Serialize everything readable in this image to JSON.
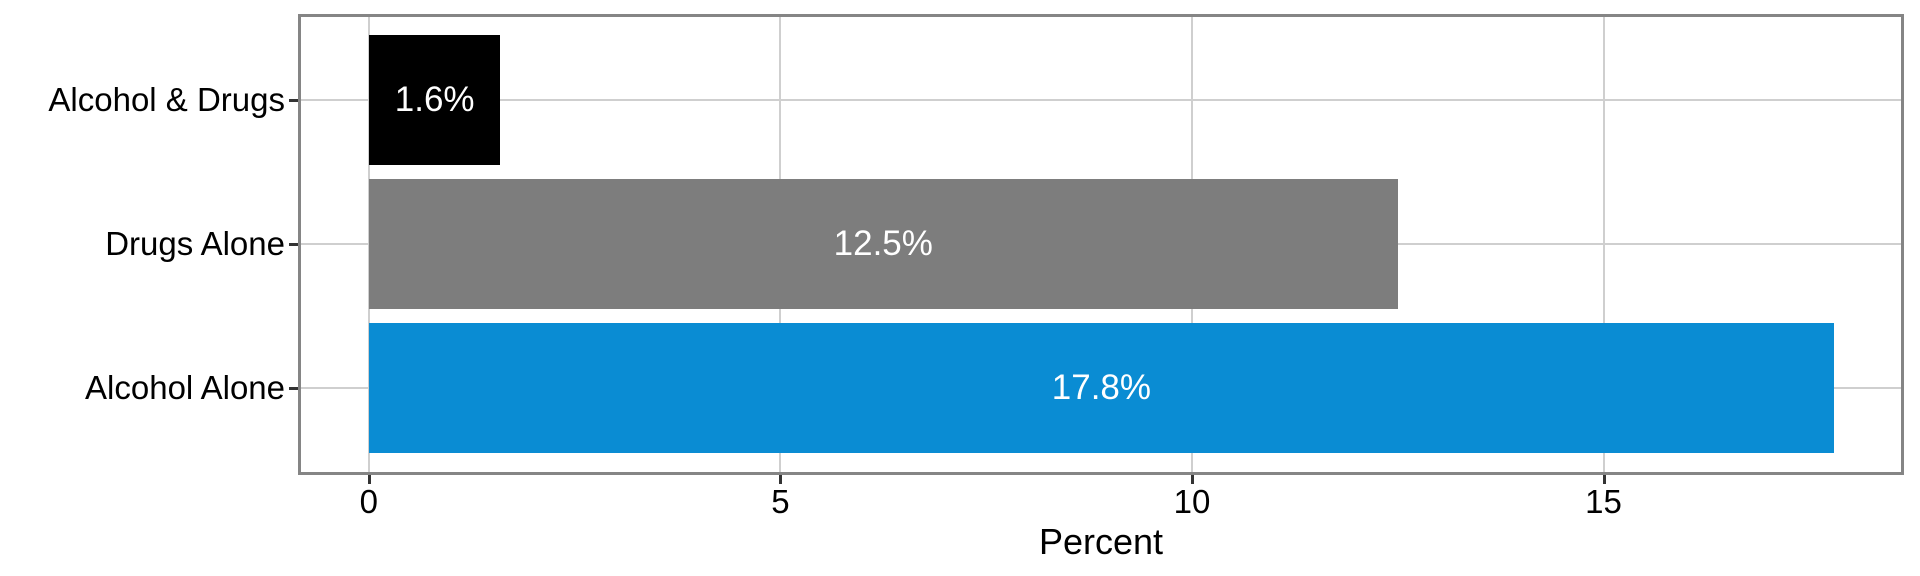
{
  "chart_data": {
    "type": "bar",
    "orientation": "horizontal",
    "title": "",
    "xlabel": "Percent",
    "ylabel": "",
    "categories": [
      "Alcohol & Drugs",
      "Drugs Alone",
      "Alcohol Alone"
    ],
    "values": [
      1.6,
      12.5,
      17.8
    ],
    "bar_labels": [
      "1.6%",
      "12.5%",
      "17.8%"
    ],
    "bar_colors": [
      "#000000",
      "#7d7d7d",
      "#0a8cd3"
    ],
    "x_tick_labels": [
      "0",
      "5",
      "10",
      "15"
    ],
    "x_tick_values": [
      0,
      5,
      10,
      15
    ],
    "xlim": [
      -0.86,
      18.65
    ],
    "grid": true,
    "legend": false
  },
  "colors": {
    "bar_label_text": "#ffffff",
    "axis_text": "#000000",
    "gridline": "#cfcfcf",
    "panel_border": "#858585",
    "tick_mark": "#333333",
    "background": "#ffffff"
  }
}
